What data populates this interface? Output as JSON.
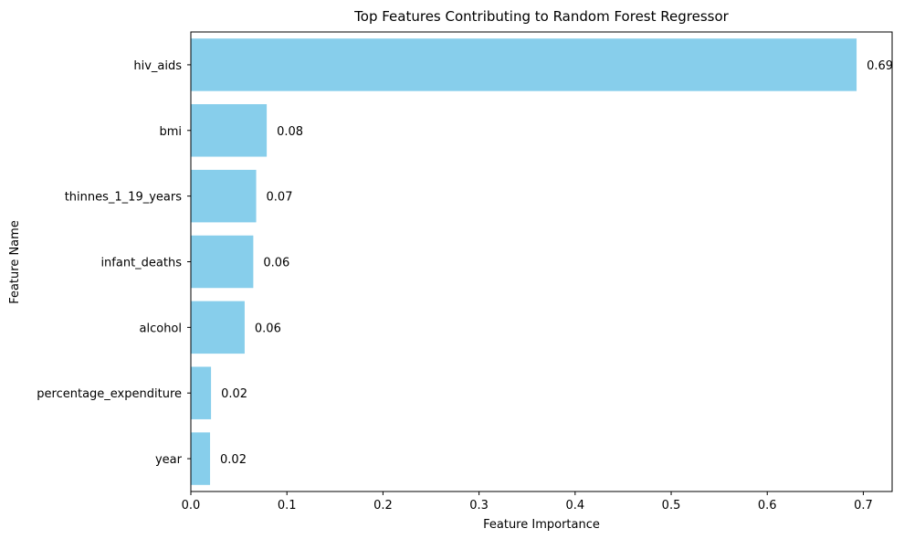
{
  "chart_data": {
    "type": "bar",
    "orientation": "horizontal",
    "title": "Top Features Contributing to Random Forest Regressor",
    "xlabel": "Feature Importance",
    "ylabel": "Feature Name",
    "categories": [
      "hiv_aids",
      "bmi",
      "thinnes_1_19_years",
      "infant_deaths",
      "alcohol",
      "percentage_expenditure",
      "year"
    ],
    "values": [
      0.693,
      0.079,
      0.068,
      0.065,
      0.056,
      0.021,
      0.02
    ],
    "value_labels": [
      "0.69",
      "0.08",
      "0.07",
      "0.06",
      "0.06",
      "0.02",
      "0.02"
    ],
    "xlim": [
      0,
      0.73
    ],
    "xticks": [
      0,
      0.1,
      0.2,
      0.3,
      0.4,
      0.5,
      0.6,
      0.7
    ],
    "xtick_labels": [
      "0.0",
      "0.1",
      "0.2",
      "0.3",
      "0.4",
      "0.5",
      "0.6",
      "0.7"
    ],
    "bar_color": "#87ceeb",
    "grid": false,
    "legend": "none"
  }
}
